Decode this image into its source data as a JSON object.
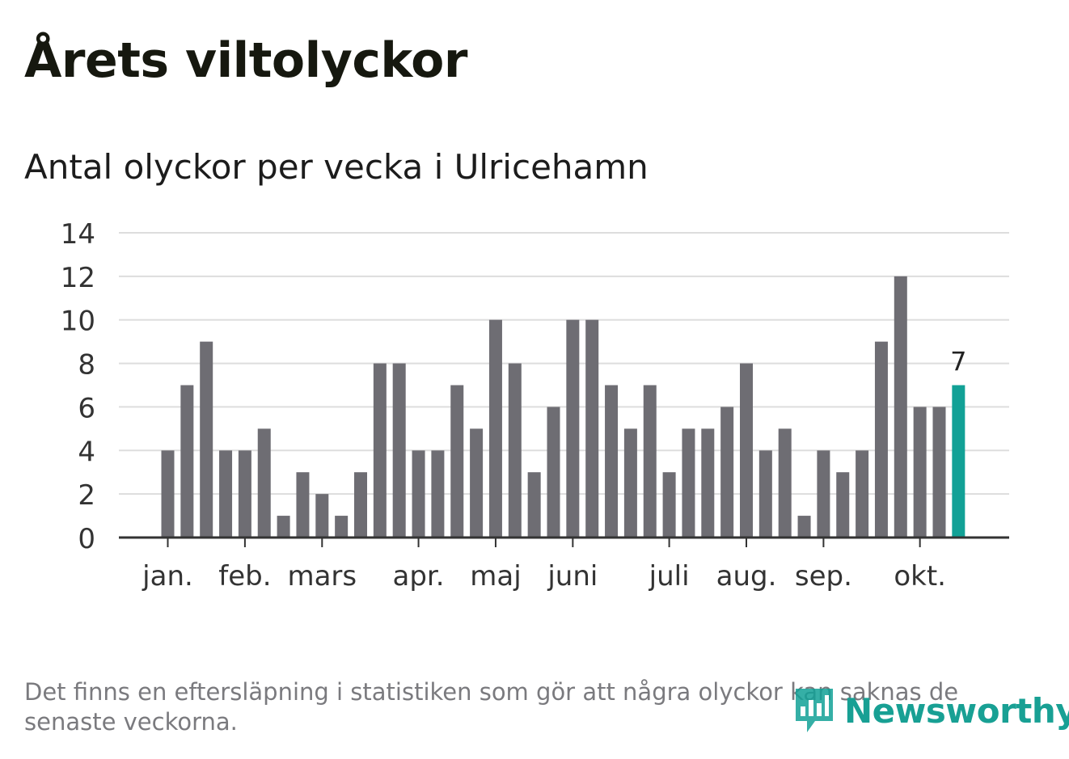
{
  "title": "Årets viltolyckor",
  "subtitle": "Antal olyckor per vecka i Ulricehamn",
  "footnote": "Det finns en eftersläpning i statistiken som gör att några olyckor kan saknas de senaste veckorna.",
  "logo": {
    "text": "Newsworthy"
  },
  "colors": {
    "bar": "#6e6d73",
    "highlight": "#12a196",
    "grid": "#dddddd",
    "axis": "#333333",
    "text": "#333333"
  },
  "chart_data": {
    "type": "bar",
    "title": "Antal olyckor per vecka i Ulricehamn",
    "xlabel": "",
    "ylabel": "",
    "ylim": [
      0,
      14
    ],
    "yticks": [
      0,
      2,
      4,
      6,
      8,
      10,
      12,
      14
    ],
    "grid": true,
    "weeks": [
      1,
      2,
      3,
      4,
      5,
      6,
      7,
      8,
      9,
      10,
      11,
      12,
      13,
      14,
      15,
      16,
      17,
      18,
      19,
      20,
      21,
      22,
      23,
      24,
      25,
      26,
      27,
      28,
      29,
      30,
      31,
      32,
      33,
      34,
      35,
      36,
      37,
      38,
      39,
      40,
      41,
      42
    ],
    "values": [
      4,
      7,
      9,
      4,
      4,
      5,
      1,
      3,
      2,
      1,
      3,
      8,
      8,
      4,
      4,
      7,
      5,
      10,
      8,
      3,
      6,
      10,
      10,
      7,
      5,
      7,
      3,
      5,
      5,
      6,
      8,
      4,
      5,
      1,
      4,
      3,
      4,
      9,
      12,
      6,
      6,
      7
    ],
    "month_labels": [
      {
        "label": "jan.",
        "week": 1
      },
      {
        "label": "feb.",
        "week": 5
      },
      {
        "label": "mars",
        "week": 9
      },
      {
        "label": "apr.",
        "week": 14
      },
      {
        "label": "maj",
        "week": 18
      },
      {
        "label": "juni",
        "week": 22
      },
      {
        "label": "juli",
        "week": 27
      },
      {
        "label": "aug.",
        "week": 31
      },
      {
        "label": "sep.",
        "week": 35
      },
      {
        "label": "okt.",
        "week": 40
      }
    ],
    "highlight_last": true,
    "last_value_label": "7"
  }
}
